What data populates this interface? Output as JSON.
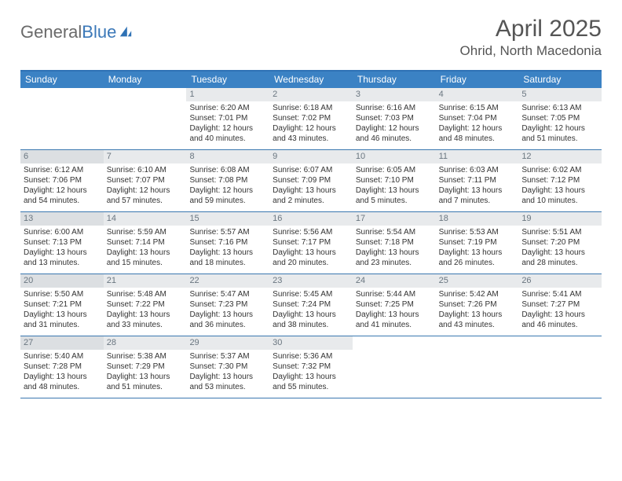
{
  "logo": {
    "word1": "General",
    "word2": "Blue",
    "icon_color": "#2f72b5",
    "text_color": "#6a6a6a"
  },
  "title": "April 2025",
  "subtitle": "Ohrid, North Macedonia",
  "colors": {
    "header_bar": "#3b82c4",
    "header_text": "#ffffff",
    "week_border": "#3b78b0",
    "daynum_bg": "#e8eaec",
    "daynum_bg_alt": "#dcdfe2",
    "daynum_text": "#6a7680",
    "body_text": "#333333"
  },
  "dow": [
    "Sunday",
    "Monday",
    "Tuesday",
    "Wednesday",
    "Thursday",
    "Friday",
    "Saturday"
  ],
  "weeks": [
    [
      null,
      null,
      {
        "n": "1",
        "sunrise": "Sunrise: 6:20 AM",
        "sunset": "Sunset: 7:01 PM",
        "daylight": "Daylight: 12 hours and 40 minutes."
      },
      {
        "n": "2",
        "sunrise": "Sunrise: 6:18 AM",
        "sunset": "Sunset: 7:02 PM",
        "daylight": "Daylight: 12 hours and 43 minutes."
      },
      {
        "n": "3",
        "sunrise": "Sunrise: 6:16 AM",
        "sunset": "Sunset: 7:03 PM",
        "daylight": "Daylight: 12 hours and 46 minutes."
      },
      {
        "n": "4",
        "sunrise": "Sunrise: 6:15 AM",
        "sunset": "Sunset: 7:04 PM",
        "daylight": "Daylight: 12 hours and 48 minutes."
      },
      {
        "n": "5",
        "sunrise": "Sunrise: 6:13 AM",
        "sunset": "Sunset: 7:05 PM",
        "daylight": "Daylight: 12 hours and 51 minutes."
      }
    ],
    [
      {
        "n": "6",
        "sunrise": "Sunrise: 6:12 AM",
        "sunset": "Sunset: 7:06 PM",
        "daylight": "Daylight: 12 hours and 54 minutes."
      },
      {
        "n": "7",
        "sunrise": "Sunrise: 6:10 AM",
        "sunset": "Sunset: 7:07 PM",
        "daylight": "Daylight: 12 hours and 57 minutes."
      },
      {
        "n": "8",
        "sunrise": "Sunrise: 6:08 AM",
        "sunset": "Sunset: 7:08 PM",
        "daylight": "Daylight: 12 hours and 59 minutes."
      },
      {
        "n": "9",
        "sunrise": "Sunrise: 6:07 AM",
        "sunset": "Sunset: 7:09 PM",
        "daylight": "Daylight: 13 hours and 2 minutes."
      },
      {
        "n": "10",
        "sunrise": "Sunrise: 6:05 AM",
        "sunset": "Sunset: 7:10 PM",
        "daylight": "Daylight: 13 hours and 5 minutes."
      },
      {
        "n": "11",
        "sunrise": "Sunrise: 6:03 AM",
        "sunset": "Sunset: 7:11 PM",
        "daylight": "Daylight: 13 hours and 7 minutes."
      },
      {
        "n": "12",
        "sunrise": "Sunrise: 6:02 AM",
        "sunset": "Sunset: 7:12 PM",
        "daylight": "Daylight: 13 hours and 10 minutes."
      }
    ],
    [
      {
        "n": "13",
        "sunrise": "Sunrise: 6:00 AM",
        "sunset": "Sunset: 7:13 PM",
        "daylight": "Daylight: 13 hours and 13 minutes."
      },
      {
        "n": "14",
        "sunrise": "Sunrise: 5:59 AM",
        "sunset": "Sunset: 7:14 PM",
        "daylight": "Daylight: 13 hours and 15 minutes."
      },
      {
        "n": "15",
        "sunrise": "Sunrise: 5:57 AM",
        "sunset": "Sunset: 7:16 PM",
        "daylight": "Daylight: 13 hours and 18 minutes."
      },
      {
        "n": "16",
        "sunrise": "Sunrise: 5:56 AM",
        "sunset": "Sunset: 7:17 PM",
        "daylight": "Daylight: 13 hours and 20 minutes."
      },
      {
        "n": "17",
        "sunrise": "Sunrise: 5:54 AM",
        "sunset": "Sunset: 7:18 PM",
        "daylight": "Daylight: 13 hours and 23 minutes."
      },
      {
        "n": "18",
        "sunrise": "Sunrise: 5:53 AM",
        "sunset": "Sunset: 7:19 PM",
        "daylight": "Daylight: 13 hours and 26 minutes."
      },
      {
        "n": "19",
        "sunrise": "Sunrise: 5:51 AM",
        "sunset": "Sunset: 7:20 PM",
        "daylight": "Daylight: 13 hours and 28 minutes."
      }
    ],
    [
      {
        "n": "20",
        "sunrise": "Sunrise: 5:50 AM",
        "sunset": "Sunset: 7:21 PM",
        "daylight": "Daylight: 13 hours and 31 minutes."
      },
      {
        "n": "21",
        "sunrise": "Sunrise: 5:48 AM",
        "sunset": "Sunset: 7:22 PM",
        "daylight": "Daylight: 13 hours and 33 minutes."
      },
      {
        "n": "22",
        "sunrise": "Sunrise: 5:47 AM",
        "sunset": "Sunset: 7:23 PM",
        "daylight": "Daylight: 13 hours and 36 minutes."
      },
      {
        "n": "23",
        "sunrise": "Sunrise: 5:45 AM",
        "sunset": "Sunset: 7:24 PM",
        "daylight": "Daylight: 13 hours and 38 minutes."
      },
      {
        "n": "24",
        "sunrise": "Sunrise: 5:44 AM",
        "sunset": "Sunset: 7:25 PM",
        "daylight": "Daylight: 13 hours and 41 minutes."
      },
      {
        "n": "25",
        "sunrise": "Sunrise: 5:42 AM",
        "sunset": "Sunset: 7:26 PM",
        "daylight": "Daylight: 13 hours and 43 minutes."
      },
      {
        "n": "26",
        "sunrise": "Sunrise: 5:41 AM",
        "sunset": "Sunset: 7:27 PM",
        "daylight": "Daylight: 13 hours and 46 minutes."
      }
    ],
    [
      {
        "n": "27",
        "sunrise": "Sunrise: 5:40 AM",
        "sunset": "Sunset: 7:28 PM",
        "daylight": "Daylight: 13 hours and 48 minutes."
      },
      {
        "n": "28",
        "sunrise": "Sunrise: 5:38 AM",
        "sunset": "Sunset: 7:29 PM",
        "daylight": "Daylight: 13 hours and 51 minutes."
      },
      {
        "n": "29",
        "sunrise": "Sunrise: 5:37 AM",
        "sunset": "Sunset: 7:30 PM",
        "daylight": "Daylight: 13 hours and 53 minutes."
      },
      {
        "n": "30",
        "sunrise": "Sunrise: 5:36 AM",
        "sunset": "Sunset: 7:32 PM",
        "daylight": "Daylight: 13 hours and 55 minutes."
      },
      null,
      null,
      null
    ]
  ]
}
